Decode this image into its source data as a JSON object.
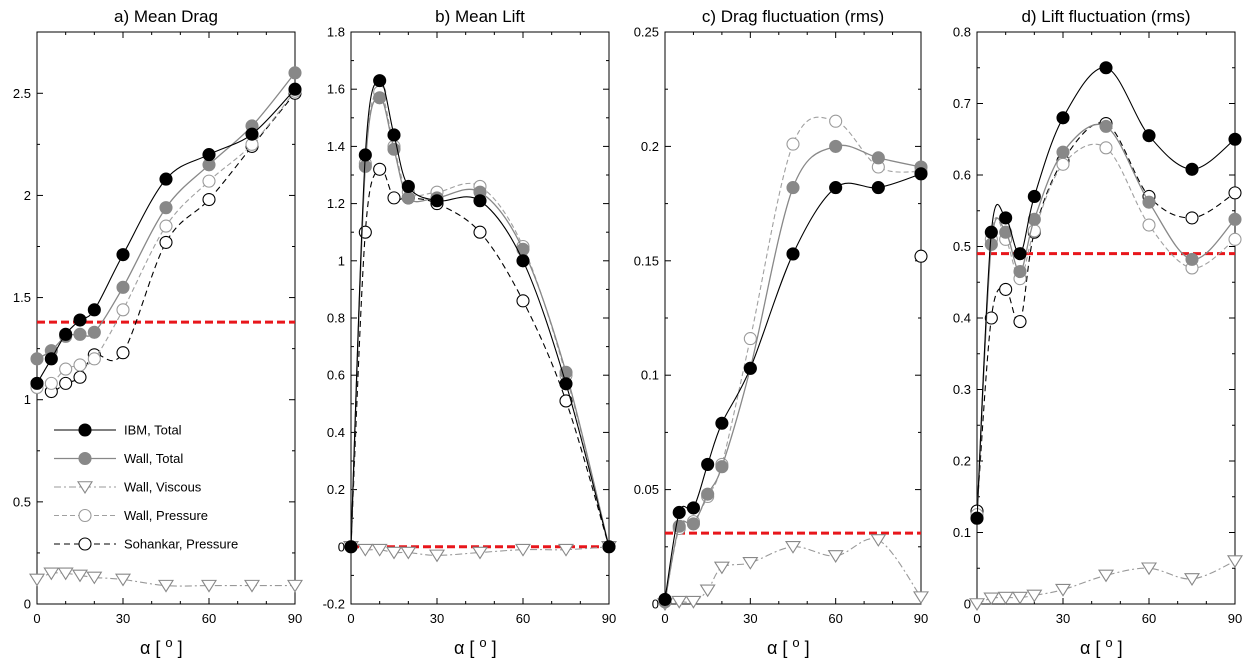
{
  "chart_data": [
    {
      "type": "line",
      "title": "a) Mean Drag",
      "xlabel": "α  [ o ]",
      "xlim": [
        0,
        90
      ],
      "ylim": [
        0,
        2.8
      ],
      "xticks": [
        0,
        30,
        60,
        90
      ],
      "yticks": [
        0,
        0.5,
        1,
        1.5,
        2,
        2.5
      ],
      "ytick_labels": [
        "0",
        "0.5",
        "1",
        "1.5",
        "2",
        "2.5"
      ],
      "reference_line": 1.38,
      "legend_placement": "lower-left",
      "series": [
        {
          "name": "IBM, Total",
          "x": [
            0,
            5,
            10,
            15,
            20,
            30,
            45,
            60,
            75,
            90
          ],
          "y": [
            1.08,
            1.2,
            1.32,
            1.39,
            1.44,
            1.71,
            2.08,
            2.2,
            2.3,
            2.52
          ]
        },
        {
          "name": "Wall, Total",
          "x": [
            0,
            5,
            10,
            15,
            20,
            30,
            45,
            60,
            75,
            90
          ],
          "y": [
            1.2,
            1.24,
            1.31,
            1.32,
            1.33,
            1.55,
            1.94,
            2.15,
            2.34,
            2.6
          ]
        },
        {
          "name": "Wall, Viscous",
          "x": [
            0,
            5,
            10,
            15,
            20,
            30,
            45,
            60,
            75,
            90
          ],
          "y": [
            0.12,
            0.15,
            0.15,
            0.14,
            0.13,
            0.12,
            0.09,
            0.09,
            0.09,
            0.09
          ]
        },
        {
          "name": "Wall, Pressure",
          "x": [
            0,
            5,
            10,
            15,
            20,
            30,
            45,
            60,
            75,
            90
          ],
          "y": [
            1.06,
            1.08,
            1.15,
            1.17,
            1.2,
            1.44,
            1.85,
            2.07,
            2.25,
            2.51
          ]
        },
        {
          "name": "Sohankar, Pressure",
          "x": [
            0,
            5,
            10,
            15,
            20,
            30,
            45,
            60,
            75,
            90
          ],
          "y": [
            1.08,
            1.04,
            1.08,
            1.11,
            1.22,
            1.23,
            1.77,
            1.98,
            2.24,
            2.5
          ]
        }
      ]
    },
    {
      "type": "line",
      "title": "b) Mean Lift",
      "xlabel": "α  [ o ]",
      "xlim": [
        0,
        90
      ],
      "ylim": [
        -0.2,
        1.8
      ],
      "xticks": [
        0,
        30,
        60,
        90
      ],
      "yticks": [
        -0.2,
        0,
        0.2,
        0.4,
        0.6,
        0.8,
        1,
        1.2,
        1.4,
        1.6,
        1.8
      ],
      "ytick_labels": [
        "-0.2",
        "0",
        "0.2",
        "0.4",
        "0.6",
        "0.8",
        "1",
        "1.2",
        "1.4",
        "1.6",
        "1.8"
      ],
      "reference_line": 0.0,
      "series": [
        {
          "name": "IBM, Total",
          "x": [
            0,
            5,
            10,
            15,
            20,
            30,
            45,
            60,
            75,
            90
          ],
          "y": [
            0,
            1.37,
            1.63,
            1.44,
            1.26,
            1.21,
            1.21,
            1.0,
            0.57,
            0
          ]
        },
        {
          "name": "Wall, Total",
          "x": [
            0,
            5,
            10,
            15,
            20,
            30,
            45,
            60,
            75,
            90
          ],
          "y": [
            0,
            1.33,
            1.57,
            1.39,
            1.22,
            1.22,
            1.24,
            1.04,
            0.61,
            0
          ]
        },
        {
          "name": "Wall, Viscous",
          "x": [
            0,
            5,
            10,
            15,
            20,
            30,
            45,
            60,
            75,
            90
          ],
          "y": [
            0,
            -0.01,
            -0.01,
            -0.02,
            -0.02,
            -0.03,
            -0.02,
            -0.01,
            -0.01,
            0
          ]
        },
        {
          "name": "Wall, Pressure",
          "x": [
            0,
            5,
            10,
            15,
            20,
            30,
            45,
            60,
            75,
            90
          ],
          "y": [
            0,
            1.34,
            1.59,
            1.4,
            1.24,
            1.24,
            1.26,
            1.05,
            0.6,
            0
          ]
        },
        {
          "name": "Sohankar, Pressure",
          "x": [
            0,
            5,
            10,
            15,
            20,
            30,
            45,
            60,
            75,
            90
          ],
          "y": [
            0,
            1.1,
            1.32,
            1.22,
            1.22,
            1.2,
            1.1,
            0.86,
            0.51,
            0
          ]
        }
      ]
    },
    {
      "type": "line",
      "title": "c) Drag fluctuation (rms)",
      "xlabel": "α  [ o ]",
      "xlim": [
        0,
        90
      ],
      "ylim": [
        0,
        0.25
      ],
      "xticks": [
        0,
        30,
        60,
        90
      ],
      "yticks": [
        0,
        0.05,
        0.1,
        0.15,
        0.2,
        0.25
      ],
      "ytick_labels": [
        "0",
        "0.05",
        "0.1",
        "0.15",
        "0.2",
        "0.25"
      ],
      "reference_line": 0.031,
      "series": [
        {
          "name": "IBM, Total",
          "x": [
            0,
            5,
            10,
            15,
            20,
            30,
            45,
            60,
            75,
            90
          ],
          "y": [
            0.002,
            0.04,
            0.042,
            0.061,
            0.079,
            0.103,
            0.153,
            0.182,
            0.182,
            0.188
          ]
        },
        {
          "name": "Wall, Total",
          "x": [
            0,
            5,
            10,
            15,
            20,
            30,
            45,
            60,
            75,
            90
          ],
          "y": [
            0.001,
            0.034,
            0.035,
            0.048,
            0.06,
            0.103,
            0.182,
            0.2,
            0.195,
            0.191
          ]
        },
        {
          "name": "Wall, Viscous",
          "x": [
            0,
            5,
            10,
            15,
            20,
            30,
            45,
            60,
            75,
            90
          ],
          "y": [
            0,
            0.001,
            0.001,
            0.006,
            0.016,
            0.018,
            0.025,
            0.021,
            0.028,
            0.003
          ]
        },
        {
          "name": "Wall, Pressure",
          "x": [
            0,
            5,
            10,
            15,
            20,
            30,
            45,
            60,
            75,
            90
          ],
          "y": [
            0.001,
            0.033,
            0.036,
            0.047,
            0.061,
            0.116,
            0.201,
            0.211,
            0.191,
            0.189
          ]
        },
        {
          "name": "Sohankar, Pressure",
          "x": [
            90
          ],
          "y": [
            0.152
          ]
        }
      ]
    },
    {
      "type": "line",
      "title": "d) Lift fluctuation (rms)",
      "xlabel": "α  [ o ]",
      "xlim": [
        0,
        90
      ],
      "ylim": [
        0,
        0.8
      ],
      "xticks": [
        0,
        30,
        60,
        90
      ],
      "yticks": [
        0,
        0.1,
        0.2,
        0.3,
        0.4,
        0.5,
        0.6,
        0.7,
        0.8
      ],
      "ytick_labels": [
        "0",
        "0.1",
        "0.2",
        "0.3",
        "0.4",
        "0.5",
        "0.6",
        "0.7",
        "0.8"
      ],
      "reference_line": 0.49,
      "series": [
        {
          "name": "IBM, Total",
          "x": [
            0,
            5,
            10,
            15,
            20,
            30,
            45,
            60,
            75,
            90
          ],
          "y": [
            0.12,
            0.52,
            0.54,
            0.49,
            0.57,
            0.68,
            0.75,
            0.655,
            0.608,
            0.65
          ]
        },
        {
          "name": "Wall, Total",
          "x": [
            0,
            5,
            10,
            15,
            20,
            30,
            45,
            60,
            75,
            90
          ],
          "y": [
            0.12,
            0.503,
            0.52,
            0.465,
            0.538,
            0.632,
            0.668,
            0.562,
            0.482,
            0.538
          ]
        },
        {
          "name": "Wall, Viscous",
          "x": [
            0,
            5,
            10,
            15,
            20,
            30,
            45,
            60,
            75,
            90
          ],
          "y": [
            0,
            0.008,
            0.009,
            0.009,
            0.012,
            0.02,
            0.04,
            0.05,
            0.035,
            0.06
          ]
        },
        {
          "name": "Wall, Pressure",
          "x": [
            0,
            5,
            10,
            15,
            20,
            30,
            45,
            60,
            75,
            90
          ],
          "y": [
            0.125,
            0.51,
            0.51,
            0.455,
            0.522,
            0.615,
            0.638,
            0.53,
            0.47,
            0.51
          ]
        },
        {
          "name": "Sohankar, Pressure",
          "x": [
            0,
            5,
            10,
            15,
            20,
            30,
            45,
            60,
            75,
            90
          ],
          "y": [
            0.13,
            0.4,
            0.44,
            0.395,
            0.52,
            0.62,
            0.672,
            0.57,
            0.54,
            0.575
          ]
        }
      ]
    }
  ],
  "colors": {
    "ibm": "#000000",
    "wall_total": "#888888",
    "wall_viscous": "#999999",
    "wall_pressure": "#a0a0a0",
    "sohankar": "#000000",
    "reference": "#e8161b"
  }
}
